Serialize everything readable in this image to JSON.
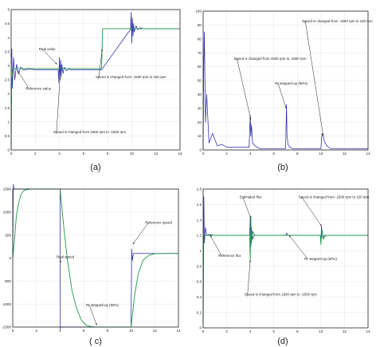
{
  "colors": {
    "blue": "#2b2ba8",
    "green": "#1f9a4a"
  },
  "chart_data": [
    {
      "id": "a",
      "type": "line",
      "caption": "(a)",
      "xlim": [
        0,
        14
      ],
      "ylim": [
        0,
        5
      ],
      "xticks": [
        "0",
        "2",
        "4",
        "6",
        "8",
        "10",
        "12",
        "14"
      ],
      "yticks": [
        "0",
        "0.5",
        "1",
        "1.5",
        "2",
        "2.5",
        "3",
        "3.5",
        "4",
        "4.5",
        "5"
      ],
      "series": [
        {
          "color": "blue",
          "x": [
            0,
            0.05,
            0.1,
            0.2,
            0.3,
            0.45,
            0.6,
            0.8,
            1,
            1.5,
            2,
            3,
            3.9,
            3.95,
            4,
            4.05,
            4.1,
            4.15,
            4.2,
            4.3,
            4.4,
            4.6,
            4.8,
            5,
            6,
            7,
            7.5,
            9.9,
            9.95,
            10,
            10.05,
            10.1,
            10.15,
            10.2,
            10.35,
            10.5,
            10.7,
            11,
            12,
            14
          ],
          "y": [
            3.3,
            3.6,
            2.2,
            3.3,
            2.5,
            3.05,
            2.7,
            2.95,
            2.85,
            2.88,
            2.86,
            2.86,
            2.86,
            2.4,
            3.3,
            2.5,
            3.2,
            2.6,
            3.05,
            2.72,
            2.95,
            2.82,
            2.88,
            2.86,
            2.86,
            2.86,
            2.86,
            4.3,
            4.9,
            3.8,
            4.7,
            4.05,
            4.5,
            4.2,
            4.42,
            4.28,
            4.35,
            4.32,
            4.32,
            4.32
          ]
        },
        {
          "color": "green",
          "x": [
            0,
            0.05,
            0.15,
            0.3,
            4,
            4.08,
            7.5,
            7.58,
            14
          ],
          "y": [
            0,
            2.5,
            2.9,
            2.9,
            2.9,
            2.9,
            2.9,
            4.32,
            4.32
          ]
        }
      ],
      "annotations": [
        {
          "text": "Real value",
          "x": 2.3,
          "y": 3.55,
          "ax": 3.8,
          "ay": 3.05
        },
        {
          "text": "Reference value",
          "x": 1.2,
          "y": 2.15,
          "ax": 0.5,
          "ay": 2.85
        },
        {
          "text": "Speed is changed from 1500 rpm to -1500 rpm",
          "x": 3.5,
          "y": 0.6,
          "ax": 4.05,
          "ay": 2.6
        },
        {
          "text": "Speed is changed from -1500 rpm to 100 rpm",
          "x": 7.0,
          "y": 2.55,
          "ax": 7.55,
          "ay": 3.6
        }
      ]
    },
    {
      "id": "b",
      "type": "line",
      "caption": "(b)",
      "xlim": [
        0,
        14
      ],
      "ylim": [
        0,
        100
      ],
      "xticks": [
        "0",
        "2",
        "4",
        "6",
        "8",
        "10",
        "12",
        "14"
      ],
      "yticks": [
        "0",
        "10",
        "20",
        "30",
        "40",
        "50",
        "60",
        "70",
        "80",
        "90",
        "100"
      ],
      "series": [
        {
          "color": "blue",
          "x": [
            0,
            0.05,
            0.1,
            0.2,
            0.3,
            0.5,
            0.8,
            1.2,
            1.6,
            2,
            3,
            3.9,
            4,
            4.05,
            4.1,
            4.2,
            4.4,
            4.8,
            5,
            7,
            7.08,
            7.12,
            7.16,
            7.2,
            7.35,
            7.6,
            8,
            10,
            10.05,
            10.1,
            10.2,
            10.3,
            10.5,
            10.8,
            11.5,
            14
          ],
          "y": [
            0,
            60,
            85,
            20,
            40,
            5,
            12,
            3,
            4,
            2,
            2,
            2,
            25,
            10,
            18,
            5,
            3,
            1,
            1,
            1,
            33,
            10,
            8,
            4,
            2,
            1,
            1,
            1,
            8,
            12,
            10,
            6,
            3,
            1,
            1,
            1
          ]
        }
      ],
      "annotations": [
        {
          "text": "Speed is changed from -1500 rpm to 100 rpm",
          "x": 8.4,
          "y": 92,
          "ax": 10.2,
          "ay": 10
        },
        {
          "text": "Speed is changed from 1500 rpm to -1500 rpm",
          "x": 2.6,
          "y": 65,
          "ax": 4.05,
          "ay": 22
        },
        {
          "text": "Rr stepped-up (50%)",
          "x": 6.1,
          "y": 47,
          "ax": 7.05,
          "ay": 30
        }
      ]
    },
    {
      "id": "c",
      "type": "line",
      "caption": "( c)",
      "xlim": [
        0,
        14
      ],
      "ylim": [
        -1500,
        1500
      ],
      "xticks": [
        "0",
        "2",
        "4",
        "6",
        "8",
        "10",
        "12",
        "14"
      ],
      "yticks": [
        "1500",
        "1000",
        "500",
        "0",
        "-500",
        "-1000",
        "-1500"
      ],
      "series": [
        {
          "color": "blue",
          "x": [
            0,
            0.05,
            0.1,
            0.4,
            0.6,
            0.8,
            1,
            1.5,
            2,
            3,
            3.95,
            4,
            4.02,
            4.05,
            5,
            7,
            8,
            9.95,
            10,
            10.05,
            10.1,
            10.2,
            10.3,
            11,
            14
          ],
          "y": [
            0,
            1600,
            1500,
            1500,
            1500,
            1500,
            1500,
            1500,
            1500,
            1500,
            1500,
            1500,
            -1550,
            -1500,
            -1500,
            -1500,
            -1500,
            -1500,
            -1500,
            200,
            -50,
            100,
            100,
            100,
            100
          ]
        },
        {
          "color": "green",
          "x": [
            0,
            0.15,
            0.3,
            0.5,
            0.7,
            0.9,
            1.2,
            1.6,
            2,
            3,
            4,
            4.3,
            4.6,
            5,
            5.4,
            5.8,
            6.2,
            6.6,
            7,
            8,
            10,
            10.3,
            10.6,
            11,
            11.5,
            12,
            13,
            14
          ],
          "y": [
            0,
            400,
            900,
            1200,
            1380,
            1460,
            1490,
            1500,
            1500,
            1500,
            1500,
            700,
            0,
            -700,
            -1100,
            -1350,
            -1460,
            -1490,
            -1500,
            -1500,
            -1500,
            -800,
            -350,
            -50,
            60,
            95,
            100,
            100
          ]
        }
      ],
      "annotations": [
        {
          "text": "Real speed",
          "x": 3.7,
          "y": 0,
          "ax": 4.05,
          "ay": -100
        },
        {
          "text": "Reference speed",
          "x": 11.2,
          "y": 750,
          "ax": 10.15,
          "ay": 300
        },
        {
          "text": "Rr stepped-up (50%)",
          "x": 6.2,
          "y": -1050,
          "ax": 7.1,
          "ay": -1460
        }
      ]
    },
    {
      "id": "d",
      "type": "line",
      "caption": "(d)",
      "xlim": [
        0,
        14
      ],
      "ylim": [
        0,
        1.8
      ],
      "xticks": [
        "0",
        "2",
        "4",
        "6",
        "8",
        "10",
        "12",
        "14"
      ],
      "yticks": [
        "0",
        "0.2",
        "0.4",
        "0.6",
        "0.8",
        "1",
        "1.2",
        "1.4",
        "1.6",
        "1.8"
      ],
      "series": [
        {
          "color": "blue",
          "x": [
            0,
            0.03,
            0.06,
            0.1,
            0.2,
            0.3,
            0.5,
            1,
            3.95,
            4,
            4.05,
            4.1,
            4.2,
            4.3,
            5,
            7,
            7.1,
            7.2,
            9.95,
            10,
            10.05,
            10.15,
            10.3,
            11,
            14
          ],
          "y": [
            0,
            1.3,
            1.7,
            1.1,
            1.3,
            1.2,
            1.21,
            1.2,
            1.2,
            1.42,
            1.05,
            1.3,
            1.15,
            1.2,
            1.2,
            1.2,
            1.23,
            1.2,
            1.2,
            1.12,
            1.32,
            1.17,
            1.2,
            1.2,
            1.2
          ]
        },
        {
          "color": "green",
          "x": [
            0,
            0.05,
            0.2,
            0.5,
            3.95,
            4,
            4.05,
            4.1,
            4.2,
            4.4,
            9.95,
            10,
            10.08,
            10.2,
            10.4,
            14
          ],
          "y": [
            0,
            1.2,
            1.2,
            1.2,
            1.2,
            0.88,
            1.45,
            1.1,
            1.25,
            1.2,
            1.2,
            1.08,
            1.28,
            1.15,
            1.2,
            1.2
          ]
        }
      ],
      "annotations": [
        {
          "text": "Estimated flux",
          "x": 3.1,
          "y": 1.68,
          "ax": 4.05,
          "ay": 1.42
        },
        {
          "text": "Speed is changed from -1500 rpm to 100 rpm",
          "x": 8.1,
          "y": 1.68,
          "ax": 10.05,
          "ay": 1.32
        },
        {
          "text": "Reference flux",
          "x": 1.3,
          "y": 0.92,
          "ax": 0.6,
          "ay": 1.2
        },
        {
          "text": "Rr stepped-up (50%)",
          "x": 8.6,
          "y": 0.88,
          "ax": 7.3,
          "ay": 1.2
        },
        {
          "text": "Speed is changed from 1500 rpm to -1500 rpm",
          "x": 3.5,
          "y": 0.42,
          "ax": 4.0,
          "ay": 0.88
        }
      ]
    }
  ]
}
